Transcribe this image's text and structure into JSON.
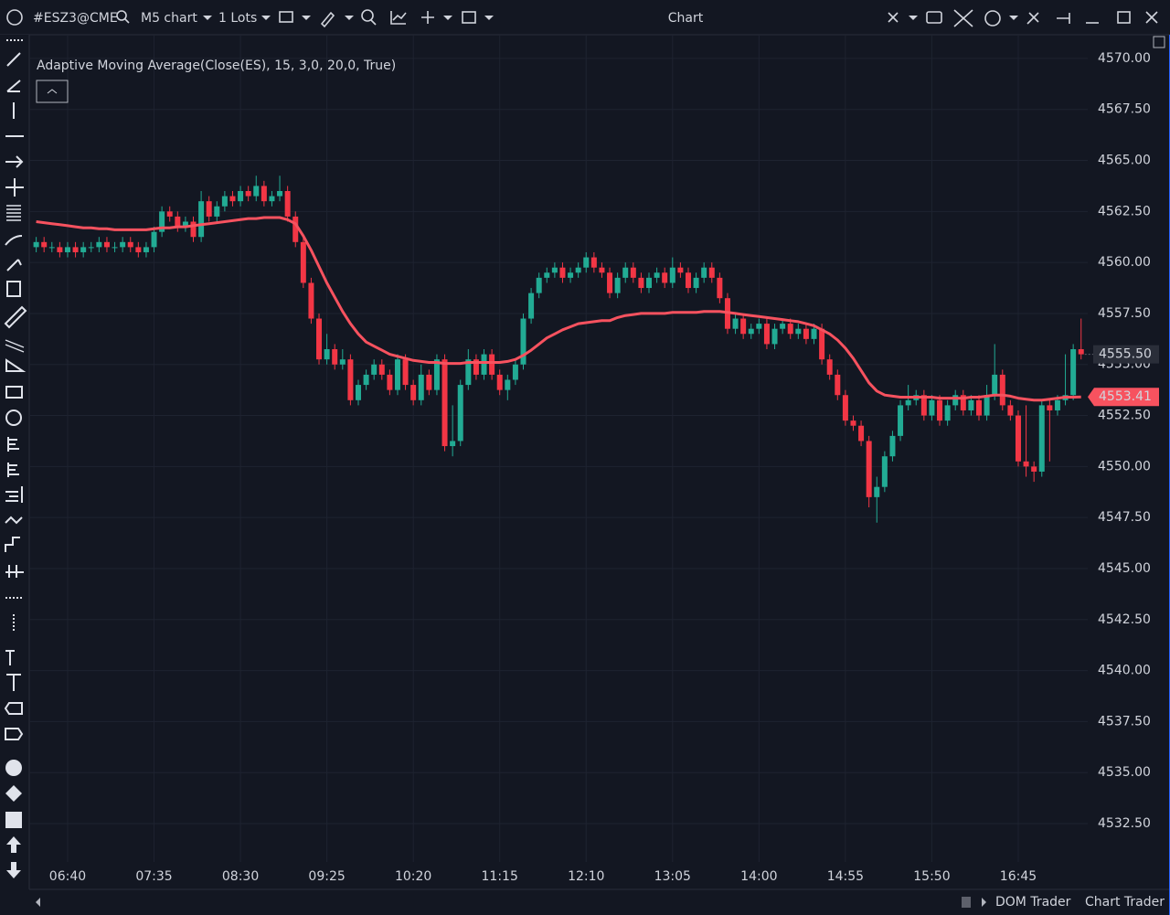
{
  "toolbar": {
    "symbol": "#ESZ3@CME",
    "timeframe": "M5 chart",
    "lots": "1 Lots",
    "title": "Chart"
  },
  "chart_data": {
    "type": "candlestick",
    "categories": [
      null,
      null,
      null,
      null,
      "06:40",
      null,
      null,
      null,
      null,
      null,
      null,
      null,
      null,
      null,
      null,
      "07:35",
      null,
      null,
      null,
      null,
      null,
      null,
      null,
      null,
      null,
      null,
      "08:30",
      null,
      null,
      null,
      null,
      null,
      null,
      null,
      null,
      null,
      null,
      "09:25",
      null,
      null,
      null,
      null,
      null,
      null,
      null,
      null,
      null,
      null,
      "10:20",
      null,
      null,
      null,
      null,
      null,
      null,
      null,
      null,
      null,
      null,
      "11:15",
      null,
      null,
      null,
      null,
      null,
      null,
      null,
      null,
      null,
      null,
      "12:10",
      null,
      null,
      null,
      null,
      null,
      null,
      null,
      null,
      null,
      null,
      "13:05",
      null,
      null,
      null,
      null,
      null,
      null,
      null,
      null,
      null,
      null,
      "14:00",
      null,
      null,
      null,
      null,
      null,
      null,
      null,
      null,
      null,
      null,
      "14:55",
      null,
      null,
      null,
      null,
      null,
      null,
      null,
      null,
      null,
      null,
      "15:50",
      null,
      null,
      null,
      null,
      null,
      null,
      null,
      null,
      null,
      null,
      "16:45",
      null,
      null,
      null,
      null,
      null,
      null,
      null,
      null
    ],
    "open": [
      4560.75,
      4561.0,
      4560.75,
      4560.75,
      4560.5,
      4560.75,
      4560.5,
      4560.75,
      4560.75,
      4561.0,
      4560.75,
      4560.75,
      4561.0,
      4560.75,
      4560.5,
      4560.75,
      4561.5,
      4562.5,
      4562.25,
      4561.75,
      4562.0,
      4561.25,
      4563.0,
      4562.25,
      4562.75,
      4563.25,
      4563.0,
      4563.5,
      4563.25,
      4563.75,
      4563.0,
      4563.25,
      4563.5,
      4562.25,
      4561.0,
      4559.0,
      4557.25,
      4555.25,
      4555.75,
      4555.0,
      4555.25,
      4553.25,
      4554.0,
      4554.5,
      4555.0,
      4554.5,
      4553.75,
      4555.25,
      4554.0,
      4553.25,
      4554.5,
      4553.75,
      4555.25,
      4551.0,
      4551.25,
      4554.0,
      4555.25,
      4554.5,
      4555.5,
      4554.5,
      4553.75,
      4554.25,
      4555.0,
      4557.25,
      4558.5,
      4559.25,
      4559.5,
      4559.75,
      4559.25,
      4559.5,
      4559.75,
      4560.25,
      4559.75,
      4559.5,
      4558.5,
      4559.25,
      4559.75,
      4559.25,
      4558.75,
      4559.25,
      4559.5,
      4559.0,
      4559.75,
      4559.5,
      4558.75,
      4559.25,
      4559.75,
      4559.25,
      4558.25,
      4556.75,
      4557.25,
      4556.5,
      4556.75,
      4557.0,
      4556.0,
      4556.75,
      4557.0,
      4556.5,
      4556.75,
      4556.25,
      4556.75,
      4555.25,
      4554.5,
      4553.5,
      4552.25,
      4552.0,
      4551.25,
      4548.5,
      4549.0,
      4550.5,
      4551.5,
      4553.0,
      4553.25,
      4553.5,
      4552.5,
      4553.25,
      4552.25,
      4553.0,
      4553.5,
      4552.75,
      4553.25,
      4552.5,
      4553.5,
      4554.5,
      4553.0,
      4552.5,
      4550.25,
      4550.0,
      4549.75,
      4553.0,
      4552.75,
      4553.25,
      4553.5,
      4555.75
    ],
    "high": [
      4561.25,
      4561.25,
      4561.0,
      4561.0,
      4561.0,
      4561.0,
      4561.0,
      4561.0,
      4561.25,
      4561.25,
      4561.0,
      4561.25,
      4561.25,
      4561.0,
      4561.0,
      4561.75,
      4562.75,
      4562.75,
      4562.5,
      4562.25,
      4562.25,
      4563.5,
      4563.25,
      4563.0,
      4563.5,
      4563.5,
      4563.75,
      4563.75,
      4564.25,
      4564.0,
      4563.5,
      4564.25,
      4563.75,
      4562.5,
      4561.25,
      4559.25,
      4557.5,
      4556.5,
      4556.0,
      4555.75,
      4555.5,
      4554.25,
      4554.75,
      4555.25,
      4555.25,
      4554.75,
      4555.5,
      4555.5,
      4554.25,
      4555.0,
      4554.75,
      4555.5,
      4555.5,
      4553.0,
      4554.25,
      4555.75,
      4555.5,
      4555.75,
      4555.75,
      4554.75,
      4554.5,
      4555.25,
      4557.5,
      4558.75,
      4559.5,
      4559.75,
      4560.0,
      4560.0,
      4559.75,
      4560.0,
      4560.5,
      4560.5,
      4560.0,
      4559.75,
      4559.5,
      4560.0,
      4560.0,
      4559.5,
      4559.5,
      4559.75,
      4559.75,
      4560.25,
      4560.0,
      4559.75,
      4559.5,
      4560.0,
      4560.0,
      4559.5,
      4558.5,
      4557.5,
      4557.5,
      4557.0,
      4557.25,
      4557.25,
      4557.0,
      4557.25,
      4557.25,
      4557.0,
      4557.0,
      4557.0,
      4557.0,
      4555.5,
      4554.75,
      4553.75,
      4552.5,
      4552.25,
      4551.5,
      4549.5,
      4550.75,
      4551.75,
      4553.25,
      4554.0,
      4553.75,
      4553.75,
      4553.5,
      4553.5,
      4553.25,
      4553.75,
      4553.75,
      4553.5,
      4553.5,
      4554.0,
      4556.0,
      4554.75,
      4553.25,
      4552.75,
      4553.0,
      4550.25,
      4553.25,
      4553.25,
      4553.5,
      4555.5,
      4556.0,
      4557.25
    ],
    "low": [
      4560.5,
      4560.5,
      4560.5,
      4560.25,
      4560.25,
      4560.25,
      4560.25,
      4560.5,
      4560.5,
      4560.5,
      4560.5,
      4560.5,
      4560.5,
      4560.25,
      4560.25,
      4560.5,
      4561.25,
      4562.0,
      4561.5,
      4561.5,
      4561.0,
      4561.0,
      4562.0,
      4562.0,
      4562.5,
      4562.75,
      4562.75,
      4563.0,
      4563.0,
      4562.75,
      4562.75,
      4563.0,
      4562.0,
      4560.75,
      4558.75,
      4557.0,
      4555.0,
      4555.0,
      4554.75,
      4554.75,
      4553.0,
      4553.0,
      4553.75,
      4554.25,
      4554.25,
      4553.5,
      4553.5,
      4553.75,
      4553.0,
      4553.0,
      4553.5,
      4553.5,
      4550.75,
      4550.5,
      4551.0,
      4553.75,
      4554.25,
      4554.25,
      4554.25,
      4553.5,
      4553.25,
      4554.0,
      4554.75,
      4557.0,
      4558.25,
      4559.0,
      4559.25,
      4559.0,
      4559.0,
      4559.25,
      4559.5,
      4559.5,
      4559.25,
      4558.25,
      4558.25,
      4559.0,
      4559.0,
      4558.5,
      4558.5,
      4559.0,
      4558.75,
      4558.75,
      4559.25,
      4558.5,
      4558.5,
      4559.0,
      4559.0,
      4558.0,
      4556.5,
      4556.5,
      4556.25,
      4556.25,
      4556.5,
      4555.75,
      4555.75,
      4556.5,
      4556.25,
      4556.25,
      4556.0,
      4556.0,
      4555.0,
      4554.25,
      4553.25,
      4552.0,
      4551.75,
      4551.0,
      4548.0,
      4547.25,
      4548.75,
      4550.25,
      4551.25,
      4552.75,
      4553.0,
      4552.25,
      4552.25,
      4552.0,
      4552.0,
      4552.75,
      4552.5,
      4552.5,
      4552.25,
      4552.25,
      4553.25,
      4552.75,
      4552.25,
      4550.0,
      4549.5,
      4549.25,
      4549.5,
      4550.25,
      4552.5,
      4553.0,
      4553.25,
      4555.25
    ],
    "close": [
      4561.0,
      4560.75,
      4560.75,
      4560.5,
      4560.75,
      4560.5,
      4560.75,
      4560.75,
      4561.0,
      4560.75,
      4560.75,
      4561.0,
      4560.75,
      4560.5,
      4560.75,
      4561.5,
      4562.5,
      4562.25,
      4561.75,
      4562.0,
      4561.25,
      4563.0,
      4562.25,
      4562.75,
      4563.25,
      4563.0,
      4563.5,
      4563.25,
      4563.75,
      4563.0,
      4563.25,
      4563.5,
      4562.25,
      4561.0,
      4559.0,
      4557.25,
      4555.25,
      4555.75,
      4555.0,
      4555.25,
      4553.25,
      4554.0,
      4554.5,
      4555.0,
      4554.5,
      4553.75,
      4555.25,
      4554.0,
      4553.25,
      4554.5,
      4553.75,
      4555.25,
      4551.0,
      4551.25,
      4554.0,
      4555.25,
      4554.5,
      4555.5,
      4554.5,
      4553.75,
      4554.25,
      4555.0,
      4557.25,
      4558.5,
      4559.25,
      4559.5,
      4559.75,
      4559.25,
      4559.5,
      4559.75,
      4560.25,
      4559.75,
      4559.5,
      4558.5,
      4559.25,
      4559.75,
      4559.25,
      4558.75,
      4559.25,
      4559.5,
      4559.0,
      4559.75,
      4559.5,
      4558.75,
      4559.25,
      4559.75,
      4559.25,
      4558.25,
      4556.75,
      4557.25,
      4556.5,
      4556.75,
      4557.0,
      4556.0,
      4556.75,
      4557.0,
      4556.5,
      4556.75,
      4556.25,
      4556.75,
      4555.25,
      4554.5,
      4553.5,
      4552.25,
      4552.0,
      4551.25,
      4548.5,
      4549.0,
      4550.5,
      4551.5,
      4553.0,
      4553.25,
      4553.5,
      4552.5,
      4553.25,
      4552.25,
      4553.0,
      4553.5,
      4552.75,
      4553.25,
      4552.5,
      4553.5,
      4554.5,
      4553.0,
      4552.5,
      4550.25,
      4550.0,
      4549.75,
      4553.0,
      4552.75,
      4553.25,
      4553.5,
      4555.75,
      4555.5
    ],
    "up_color": "#22ab94",
    "down_color": "#f23645",
    "series": [
      {
        "name": "Adaptive Moving Average(Close(ES), 15, 3,0, 20,0, True)",
        "color": "#f7525f",
        "values": [
          4562.0,
          4561.95,
          4561.9,
          4561.85,
          4561.8,
          4561.75,
          4561.7,
          4561.7,
          4561.65,
          4561.65,
          4561.6,
          4561.6,
          4561.6,
          4561.6,
          4561.6,
          4561.65,
          4561.7,
          4561.7,
          4561.75,
          4561.75,
          4561.8,
          4561.85,
          4561.9,
          4561.95,
          4562.0,
          4562.05,
          4562.1,
          4562.15,
          4562.15,
          4562.2,
          4562.2,
          4562.2,
          4562.1,
          4561.9,
          4561.3,
          4560.6,
          4559.8,
          4559.0,
          4558.3,
          4557.6,
          4557.0,
          4556.5,
          4556.1,
          4555.9,
          4555.7,
          4555.5,
          4555.4,
          4555.3,
          4555.2,
          4555.15,
          4555.1,
          4555.1,
          4555.05,
          4555.05,
          4555.05,
          4555.1,
          4555.1,
          4555.1,
          4555.1,
          4555.1,
          4555.15,
          4555.25,
          4555.45,
          4555.7,
          4556.0,
          4556.3,
          4556.5,
          4556.7,
          4556.85,
          4557.0,
          4557.05,
          4557.1,
          4557.15,
          4557.15,
          4557.3,
          4557.4,
          4557.45,
          4557.5,
          4557.5,
          4557.5,
          4557.5,
          4557.55,
          4557.55,
          4557.55,
          4557.55,
          4557.6,
          4557.6,
          4557.6,
          4557.55,
          4557.5,
          4557.45,
          4557.4,
          4557.35,
          4557.3,
          4557.25,
          4557.2,
          4557.15,
          4557.1,
          4557.0,
          4556.9,
          4556.7,
          4556.5,
          4556.2,
          4555.8,
          4555.3,
          4554.7,
          4554.1,
          4553.7,
          4553.5,
          4553.45,
          4553.4,
          4553.4,
          4553.4,
          4553.4,
          4553.4,
          4553.35,
          4553.35,
          4553.35,
          4553.35,
          4553.4,
          4553.4,
          4553.45,
          4553.5,
          4553.5,
          4553.45,
          4553.35,
          4553.3,
          4553.25,
          4553.25,
          4553.3,
          4553.35,
          4553.4,
          4553.4,
          4553.41
        ]
      }
    ],
    "ylim": [
      4530.62,
      4571.16
    ],
    "yticks": [
      {
        "value": 4532.5,
        "label": "4532.50"
      },
      {
        "value": 4535,
        "label": "4535.00"
      },
      {
        "value": 4537.5,
        "label": "4537.50"
      },
      {
        "value": 4540,
        "label": "4540.00"
      },
      {
        "value": 4542.5,
        "label": "4542.50"
      },
      {
        "value": 4545,
        "label": "4545.00"
      },
      {
        "value": 4547.5,
        "label": "4547.50"
      },
      {
        "value": 4550,
        "label": "4550.00"
      },
      {
        "value": 4552.5,
        "label": "4552.50"
      },
      {
        "value": 4555,
        "label": "4555.00"
      },
      {
        "value": 4557.5,
        "label": "4557.50"
      },
      {
        "value": 4560,
        "label": "4560.00"
      },
      {
        "value": 4562.5,
        "label": "4562.50"
      },
      {
        "value": 4565,
        "label": "4565.00"
      },
      {
        "value": 4567.5,
        "label": "4567.50"
      },
      {
        "value": 4570,
        "label": "4570.00"
      }
    ],
    "grid": true,
    "price_badge": "4555.50",
    "ama_badge": "4553.41"
  },
  "footer": {
    "tabs": [
      "DOM Trader",
      "Chart Trader"
    ]
  }
}
